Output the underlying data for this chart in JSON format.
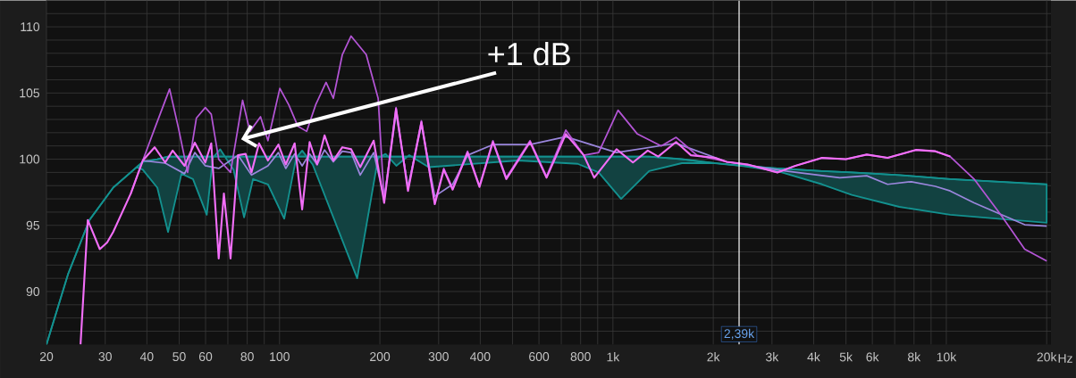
{
  "chart_data": {
    "type": "line",
    "log": "x",
    "grid": true,
    "xlim": [
      20,
      20600
    ],
    "ylim": [
      86,
      112
    ],
    "xticks": [
      20,
      30,
      40,
      50,
      60,
      {
        "value": 70,
        "label": null
      },
      80,
      {
        "value": 90,
        "label": null
      },
      100,
      200,
      300,
      400,
      {
        "value": 500,
        "label": null
      },
      600,
      {
        "value": 700,
        "label": null
      },
      800,
      {
        "value": 900,
        "label": null
      },
      {
        "value": 1000,
        "label": "1k"
      },
      {
        "value": 2000,
        "label": "2k"
      },
      {
        "value": 3000,
        "label": "3k"
      },
      {
        "value": 4000,
        "label": "4k"
      },
      {
        "value": 5000,
        "label": "5k"
      },
      {
        "value": 6000,
        "label": "6k"
      },
      {
        "value": 7000,
        "label": null
      },
      {
        "value": 8000,
        "label": "8k"
      },
      {
        "value": 9000,
        "label": null
      },
      {
        "value": 10000,
        "label": "10k"
      },
      {
        "value": 20000,
        "label": "20k"
      }
    ],
    "xlabel": "Hz",
    "yticks": [
      {
        "value": 87,
        "label": null
      },
      {
        "value": 88,
        "label": null
      },
      {
        "value": 89,
        "label": null
      },
      90,
      {
        "value": 91,
        "label": null
      },
      {
        "value": 92,
        "label": null
      },
      {
        "value": 93,
        "label": null
      },
      {
        "value": 94,
        "label": null
      },
      95,
      {
        "value": 96,
        "label": null
      },
      {
        "value": 97,
        "label": null
      },
      {
        "value": 98,
        "label": null
      },
      {
        "value": 99,
        "label": null
      },
      100,
      {
        "value": 101,
        "label": null
      },
      {
        "value": 102,
        "label": null
      },
      {
        "value": 103,
        "label": null
      },
      {
        "value": 104,
        "label": null
      },
      105,
      {
        "value": 106,
        "label": null
      },
      {
        "value": 107,
        "label": null
      },
      {
        "value": 108,
        "label": null
      },
      {
        "value": 109,
        "label": null
      },
      110,
      {
        "value": 111,
        "label": null
      }
    ],
    "series": [
      {
        "color": "#13918f",
        "x": [
          20,
          23.2,
          26.9,
          31.7,
          37.3,
          38.9,
          43,
          46.3,
          50.8,
          55,
          60.5,
          63.1,
          66.4,
          72.8,
          78.3,
          83.3,
          92.3,
          103.3,
          112.2,
          116.9,
          125.7,
          171,
          197.6,
          208,
          224,
          245,
          280,
          520,
          784,
          906,
          1058,
          1284,
          1610,
          2021,
          2432,
          3113,
          4239,
          5206,
          7224,
          10270,
          20000
        ],
        "values": [
          86,
          91.3,
          95.4,
          97.85,
          99.4,
          99.8,
          100,
          100.2,
          100.2,
          100.2,
          100.2,
          100.2,
          100.2,
          100.2,
          100.2,
          100.2,
          100.2,
          100.2,
          100.2,
          100.2,
          100.2,
          100.2,
          100.2,
          100.2,
          100.2,
          100.2,
          100.2,
          100.2,
          100.2,
          100.2,
          100.2,
          100.2,
          100.0,
          99.7,
          99.5,
          99.3,
          99.1,
          99.0,
          98.8,
          98.5,
          98.1
        ],
        "upper": [
          86,
          91.3,
          95.4,
          97.85,
          99.4,
          99.8,
          100,
          100.2,
          100.2,
          100.2,
          100.2,
          100.2,
          100.2,
          100.2,
          100.2,
          100.2,
          100.2,
          100.2,
          100.2,
          100.2,
          100.2,
          100.2,
          100.2,
          100.2,
          100.2,
          100.2,
          100.2,
          100.2,
          100.2,
          100.2,
          100.2,
          100.2,
          100.0,
          99.7,
          99.5,
          99.3,
          99.1,
          99.0,
          98.8,
          98.5,
          98.1
        ],
        "lower": [
          86,
          91.3,
          95.4,
          97.85,
          99.4,
          99.2,
          97.85,
          94.5,
          98.9,
          98.5,
          95.8,
          100.1,
          100.75,
          99.2,
          95.6,
          98.5,
          98.1,
          95.5,
          100.1,
          100.65,
          99.6,
          91,
          100.1,
          100.4,
          99.5,
          100.3,
          99.4,
          99.9,
          99.65,
          99,
          97,
          99.1,
          99.7,
          99.7,
          99.5,
          99.1,
          98.1,
          97.3,
          96.4,
          95.8,
          95.2
        ]
      },
      {
        "color": "#9a86dc",
        "x": [
          38.9,
          45.4,
          51.9,
          55.7,
          59.9,
          65.7,
          75.1,
          82.4,
          92.3,
          99.2,
          104.4,
          111,
          116.9,
          123.1,
          129.6,
          136.5,
          145,
          154.3,
          164,
          174.6,
          191.6,
          206,
          223.6,
          242.8,
          266.4,
          292.2,
          330.6,
          366.4,
          436.5,
          564.2,
          722.4,
          1025,
          1547,
          2194,
          3303,
          4790,
          5772,
          6667,
          7854,
          9268,
          10270,
          12110,
          17180,
          20000
        ],
        "values": [
          99.9,
          99.7,
          98.9,
          100.5,
          99.5,
          99.3,
          100.3,
          98.8,
          99.5,
          100.5,
          99.3,
          100.4,
          99.5,
          100.4,
          99.6,
          100.7,
          99.8,
          100.6,
          100.5,
          98.8,
          100.5,
          97,
          103.5,
          97.9,
          102.6,
          97.2,
          98.1,
          100.3,
          101.1,
          101.1,
          101.7,
          100.5,
          101.2,
          99.8,
          99.1,
          98.6,
          98.75,
          98.1,
          98.3,
          97.95,
          97.6,
          96.7,
          95.05,
          94.95
        ]
      },
      {
        "color": "#b455d6",
        "x": [
          35.8,
          38.9,
          42.2,
          46.8,
          49.8,
          53,
          56.3,
          59.9,
          62.4,
          65.7,
          71.3,
          77.5,
          81.5,
          87.7,
          92.3,
          100.2,
          106.6,
          113.4,
          120.6,
          128.3,
          137.9,
          145,
          154.3,
          163.9,
          182,
          197.6,
          206,
          223.6,
          242.8,
          266.4,
          292.2,
          310.9,
          330.6,
          366.4,
          397.9,
          436.5,
          478.8,
          564.2,
          632.2,
          722.4,
          817.4,
          906,
          1036,
          1184,
          1396,
          1547,
          1787,
          2194,
          2535,
          3113,
          3524,
          4239,
          5000,
          5772,
          6667,
          8105,
          9268,
          10270,
          12110,
          14570,
          17180,
          20000
        ],
        "values": [
          97.4,
          99.9,
          102.3,
          105.3,
          102.3,
          99,
          103.1,
          103.9,
          103.4,
          100,
          99,
          104.45,
          102.1,
          103.2,
          101.4,
          105.35,
          104.1,
          102.5,
          102.1,
          104.1,
          105.8,
          104.6,
          107.9,
          109.3,
          107.9,
          104.6,
          96.9,
          103.9,
          97.7,
          102.9,
          96.7,
          99.3,
          97.8,
          100.6,
          98,
          101.4,
          98.6,
          101.4,
          98.7,
          102.2,
          100.3,
          100.5,
          103.7,
          101.9,
          101,
          101.65,
          100.3,
          99.8,
          99.6,
          99,
          99.5,
          100.1,
          100,
          100.35,
          100.1,
          100.7,
          100.6,
          100.2,
          98.5,
          95.8,
          93.2,
          92.3
        ]
      },
      {
        "color": "#f26ef8",
        "x": [
          25.3,
          26.6,
          28.9,
          30.4,
          31.7,
          35.8,
          38.9,
          42.2,
          45.4,
          47.8,
          51.9,
          55.7,
          59.9,
          62.4,
          65.7,
          68.1,
          71.3,
          75.1,
          79.1,
          82.4,
          86.8,
          92.3,
          99.2,
          104.4,
          111,
          116.9,
          123.1,
          129.6,
          136.5,
          145,
          154.3,
          164,
          174.6,
          191.6,
          206,
          223.6,
          242.8,
          266.4,
          292.2,
          310.9,
          330.6,
          366.4,
          397.9,
          436.5,
          478.8,
          564.2,
          632.2,
          722.4,
          817.4,
          878.5,
          1025,
          1148,
          1272,
          1367,
          1547,
          1714,
          2021,
          2194,
          2535,
          3113,
          3524,
          4239,
          5000,
          5772,
          6667,
          8105,
          9268,
          10270
        ],
        "values": [
          86,
          95.4,
          93.2,
          93.7,
          94.5,
          97.4,
          99.9,
          100.9,
          99.75,
          100.65,
          99.5,
          101.25,
          99.75,
          101.2,
          92.5,
          97.4,
          92.5,
          100.3,
          100.4,
          99,
          101.2,
          99.9,
          101.1,
          99.6,
          101.2,
          96.2,
          101.3,
          99.6,
          101.8,
          99.9,
          100.9,
          100.75,
          99.4,
          101.4,
          96.7,
          103.8,
          97.6,
          102.8,
          96.6,
          99.2,
          97.7,
          100.5,
          97.9,
          101.3,
          98.5,
          101.3,
          98.6,
          101.9,
          100.3,
          98.6,
          100.75,
          99.75,
          100.65,
          100.2,
          101.3,
          100.3,
          100.1,
          99.8,
          99.6,
          99,
          99.5,
          100.1,
          100,
          100.35,
          100.1,
          100.7,
          100.6,
          100.2
        ]
      }
    ],
    "ref_lines": [
      {
        "axis": "x",
        "value": 2390,
        "label": "2,39k",
        "color": "#ffffff"
      }
    ],
    "annotations": [
      {
        "text": "+1 dB",
        "x": 76.7,
        "y": 101.5
      }
    ]
  }
}
